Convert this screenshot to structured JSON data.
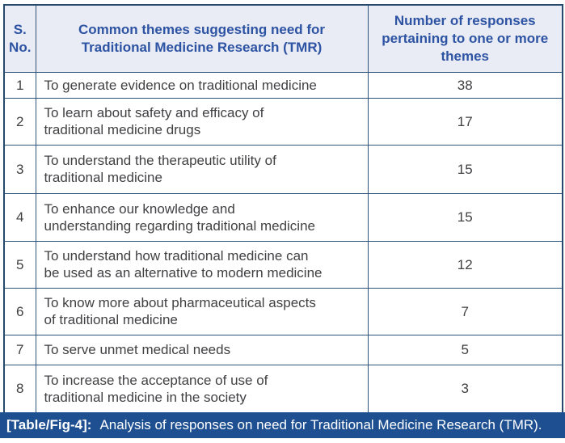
{
  "colors": {
    "header_bg": "#e9ebf5",
    "header_text": "#2d53a3",
    "inner_border": "#2f547c",
    "outer_border": "#27496b",
    "body_text": "#414144",
    "caption_bg": "#1d4f91",
    "caption_text": "#ffffff"
  },
  "table": {
    "columns": [
      {
        "id": "sno",
        "label": "S.\nNo."
      },
      {
        "id": "theme",
        "label": "Common themes suggesting need for\nTraditional Medicine Research (TMR)"
      },
      {
        "id": "responses",
        "label": "Number of responses\npertaining to one or more\nthemes"
      }
    ],
    "rows": [
      {
        "sno": "1",
        "theme": "To generate evidence on traditional medicine",
        "responses": "38"
      },
      {
        "sno": "2",
        "theme": "To learn about safety and efficacy of\ntraditional medicine drugs",
        "responses": "17"
      },
      {
        "sno": "3",
        "theme": "To understand the therapeutic utility of\ntraditional medicine",
        "responses": "15"
      },
      {
        "sno": "4",
        "theme": "To enhance our knowledge and\nunderstanding regarding traditional medicine",
        "responses": "15"
      },
      {
        "sno": "5",
        "theme": "To understand how traditional medicine can\nbe used as an alternative to modern medicine",
        "responses": "12"
      },
      {
        "sno": "6",
        "theme": "To know more about pharmaceutical aspects\nof traditional medicine",
        "responses": "7"
      },
      {
        "sno": "7",
        "theme": "To serve unmet medical needs",
        "responses": "5"
      },
      {
        "sno": "8",
        "theme": "To increase the acceptance of use of\ntraditional medicine in the society",
        "responses": "3"
      }
    ]
  },
  "caption": {
    "tag": "[Table/Fig-4]:",
    "text": "Analysis of responses on need for Traditional Medicine Research (TMR)."
  }
}
